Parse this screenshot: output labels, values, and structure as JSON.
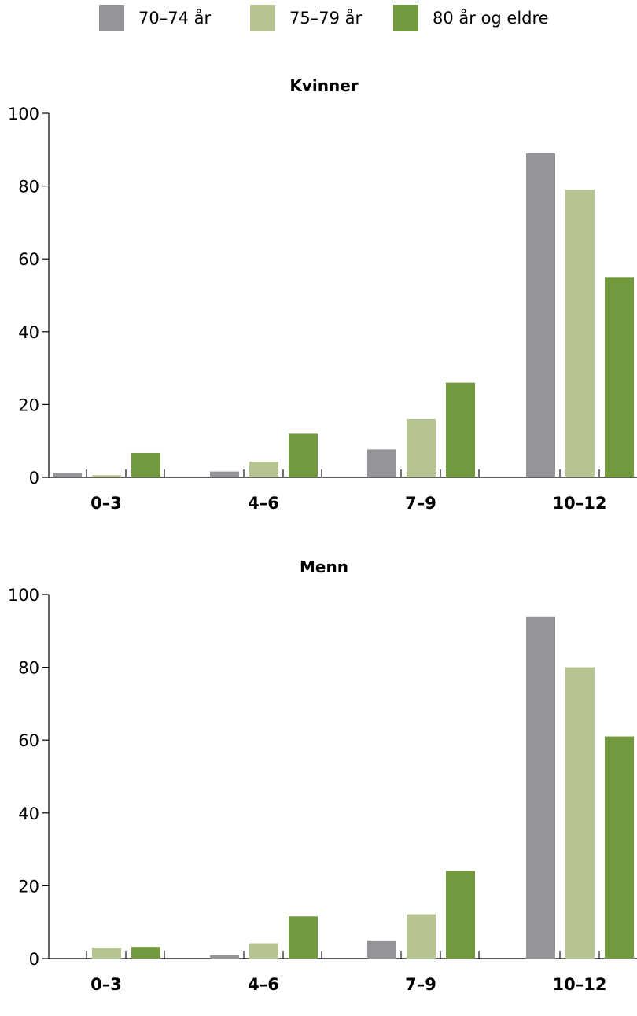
{
  "legend": [
    {
      "label": "70–74 år",
      "color": "#939598"
    },
    {
      "label": "75–79 år",
      "color": "#b5c490"
    },
    {
      "label": "80 år og eldre",
      "color": "#72993e"
    }
  ],
  "chart_data": [
    {
      "type": "bar",
      "title": "Kvinner",
      "categories": [
        "0–3",
        "4–6",
        "7–9",
        "10–12"
      ],
      "ylim": [
        0,
        100
      ],
      "yticks": [
        0,
        20,
        40,
        60,
        80,
        100
      ],
      "series": [
        {
          "name": "70–74 år",
          "values": [
            1.3,
            1.6,
            7.7,
            89
          ]
        },
        {
          "name": "75–79 år",
          "values": [
            0.6,
            4.3,
            16,
            79
          ]
        },
        {
          "name": "80 år og eldre",
          "values": [
            6.7,
            12,
            26,
            55
          ]
        }
      ]
    },
    {
      "type": "bar",
      "title": "Menn",
      "categories": [
        "0–3",
        "4–6",
        "7–9",
        "10–12"
      ],
      "ylim": [
        0,
        100
      ],
      "yticks": [
        0,
        20,
        40,
        60,
        80,
        100
      ],
      "series": [
        {
          "name": "70–74 år",
          "values": [
            0,
            0.9,
            5,
            94
          ]
        },
        {
          "name": "75–79 år",
          "values": [
            3,
            4.2,
            12.2,
            80
          ]
        },
        {
          "name": "80 år og eldre",
          "values": [
            3.2,
            11.6,
            24.1,
            61
          ]
        }
      ]
    }
  ]
}
